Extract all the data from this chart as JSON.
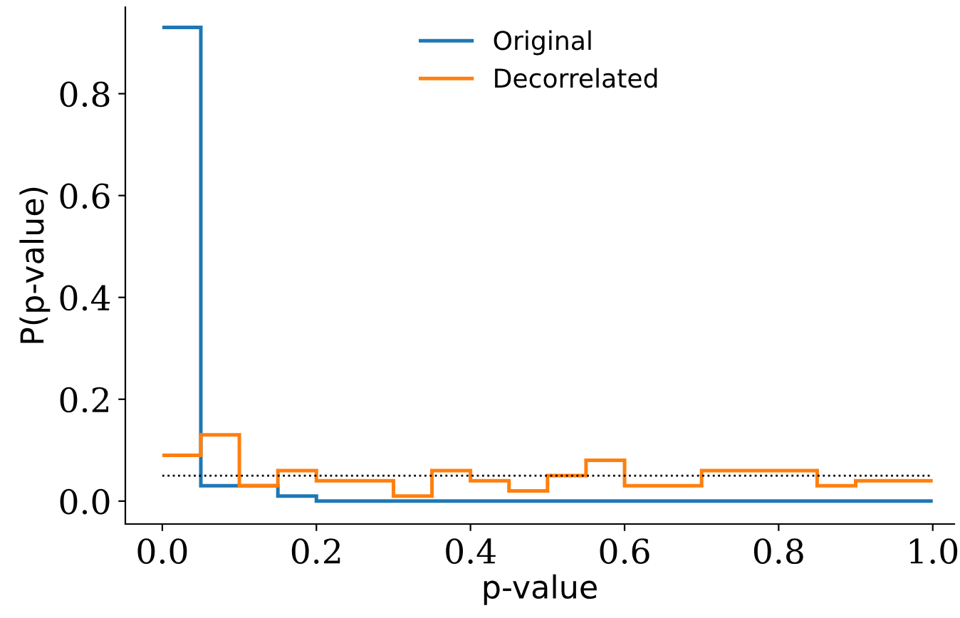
{
  "chart_data": {
    "type": "histogram",
    "xlabel": "p-value",
    "ylabel": "P(p-value)",
    "bins": [
      0,
      0.05,
      0.1,
      0.15,
      0.2,
      0.25,
      0.3,
      0.35,
      0.4,
      0.45,
      0.5,
      0.55,
      0.6,
      0.65,
      0.7,
      0.75,
      0.8,
      0.85,
      0.9,
      0.95,
      1.0
    ],
    "series": [
      {
        "name": "Original",
        "color": "#1f77b4",
        "values": [
          0.93,
          0.03,
          0.03,
          0.01,
          0,
          0,
          0,
          0,
          0,
          0,
          0,
          0,
          0,
          0,
          0,
          0,
          0,
          0,
          0,
          0
        ]
      },
      {
        "name": "Decorrelated",
        "color": "#ff7f0e",
        "values": [
          0.09,
          0.13,
          0.03,
          0.06,
          0.04,
          0.04,
          0.01,
          0.06,
          0.04,
          0.02,
          0.05,
          0.08,
          0.03,
          0.03,
          0.06,
          0.06,
          0.06,
          0.03,
          0.04,
          0.04
        ]
      }
    ],
    "ref_lines": [
      {
        "axis": "y",
        "value": 0.05,
        "label": null,
        "color": "#000000",
        "line_style": "dotted"
      }
    ],
    "xlim": [
      -0.048,
      1.028
    ],
    "ylim": [
      -0.045,
      0.97
    ],
    "xticks": [
      {
        "value": 0,
        "label": "0.0"
      },
      {
        "value": 0.2,
        "label": "0.2"
      },
      {
        "value": 0.4,
        "label": "0.4"
      },
      {
        "value": 0.6,
        "label": "0.6"
      },
      {
        "value": 0.8,
        "label": "0.8"
      },
      {
        "value": 1.0,
        "label": "1.0"
      }
    ],
    "yticks": [
      {
        "value": 0,
        "label": "0.0"
      },
      {
        "value": 0.2,
        "label": "0.2"
      },
      {
        "value": 0.4,
        "label": "0.4"
      },
      {
        "value": 0.6,
        "label": "0.6"
      },
      {
        "value": 0.8,
        "label": "0.8"
      }
    ],
    "legend": "top",
    "grid": false
  }
}
